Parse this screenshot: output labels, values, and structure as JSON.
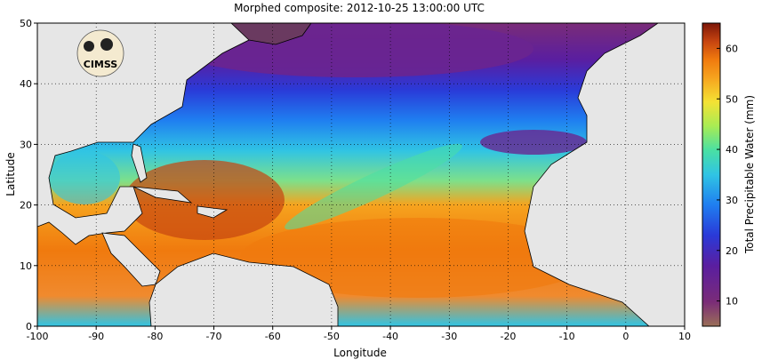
{
  "title": "Morphed composite: 2012-10-25 13:00:00 UTC",
  "logo_text": "CIMSS",
  "map": {
    "xlabel": "Longitude",
    "ylabel": "Latitude",
    "xlim": [
      -100,
      10
    ],
    "ylim": [
      0,
      50
    ],
    "xticks": [
      {
        "value": -100,
        "label": "-100"
      },
      {
        "value": -90,
        "label": "-90"
      },
      {
        "value": -80,
        "label": "-80"
      },
      {
        "value": -70,
        "label": "-70"
      },
      {
        "value": -60,
        "label": "-60"
      },
      {
        "value": -50,
        "label": "-50"
      },
      {
        "value": -40,
        "label": "-40"
      },
      {
        "value": -30,
        "label": "-30"
      },
      {
        "value": -20,
        "label": "-20"
      },
      {
        "value": -10,
        "label": "-10"
      },
      {
        "value": 0,
        "label": "0"
      },
      {
        "value": 10,
        "label": "10"
      }
    ],
    "yticks": [
      {
        "value": 0,
        "label": "0"
      },
      {
        "value": 10,
        "label": "10"
      },
      {
        "value": 20,
        "label": "20"
      },
      {
        "value": 30,
        "label": "30"
      },
      {
        "value": 40,
        "label": "40"
      },
      {
        "value": 50,
        "label": "50"
      }
    ],
    "grid": "dotted"
  },
  "colorbar": {
    "label": "Total Precipitable Water (mm)",
    "range": [
      5,
      65
    ],
    "ticks": [
      {
        "value": 10,
        "label": "10"
      },
      {
        "value": 20,
        "label": "20"
      },
      {
        "value": 30,
        "label": "30"
      },
      {
        "value": 40,
        "label": "40"
      },
      {
        "value": 50,
        "label": "50"
      },
      {
        "value": 60,
        "label": "60"
      }
    ],
    "colors": [
      "#9a6f57",
      "#7a2c78",
      "#5a1ea0",
      "#2a3ad8",
      "#1f7ef0",
      "#30c4e4",
      "#49e0a4",
      "#a8ec54",
      "#f4e234",
      "#f6a31e",
      "#f07a0e",
      "#c64410",
      "#7c1608"
    ]
  },
  "land_color": "#e6e6e6"
}
